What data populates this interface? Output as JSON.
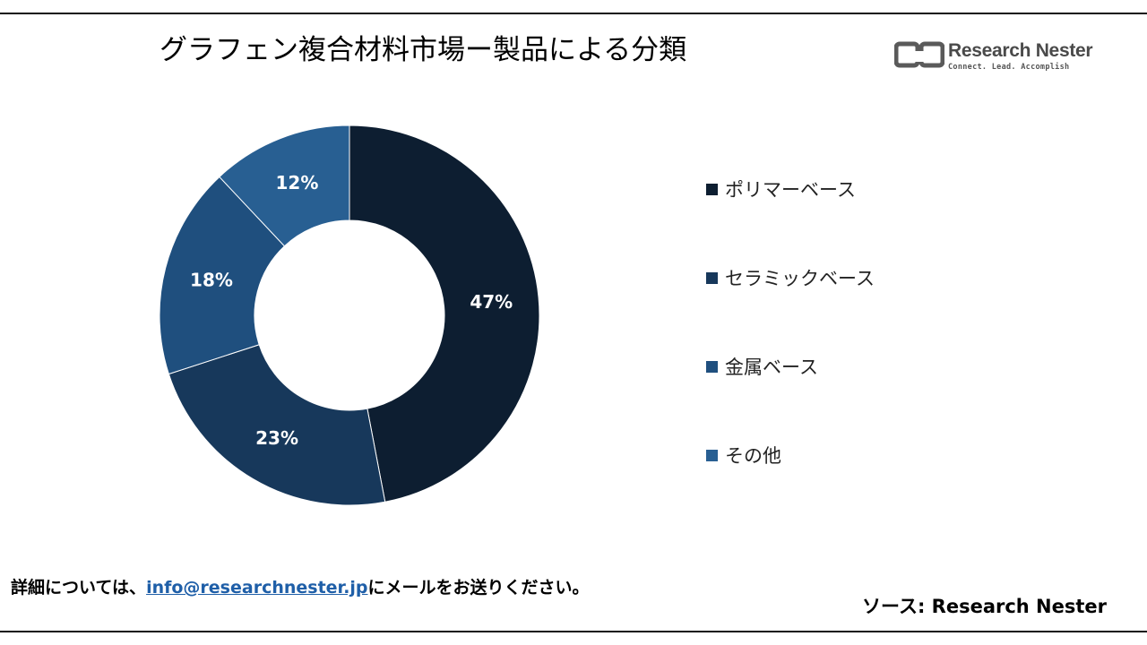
{
  "header": {
    "title": "グラフェン複合材料市場ー製品による分類"
  },
  "logo": {
    "name": "Research Nester",
    "tagline": "Connect. Lead. Accomplish",
    "icon": "research-nester-logo-icon"
  },
  "chart_data": {
    "type": "pie",
    "variant": "donut",
    "categories": [
      "ポリマーベース",
      "セラミックベース",
      "金属ベース",
      "その他"
    ],
    "values": [
      47,
      23,
      18,
      12
    ],
    "labels": [
      "47%",
      "23%",
      "18%",
      "12%"
    ],
    "unit": "%",
    "colors": [
      "#0d1e31",
      "#17385b",
      "#1f4f7e",
      "#285f92"
    ],
    "legend_position": "right"
  },
  "footer": {
    "note_prefix": "詳細については、",
    "email": "info@researchnester.jp",
    "note_suffix": "にメールをお送りください。",
    "source": "ソース: Research Nester"
  }
}
